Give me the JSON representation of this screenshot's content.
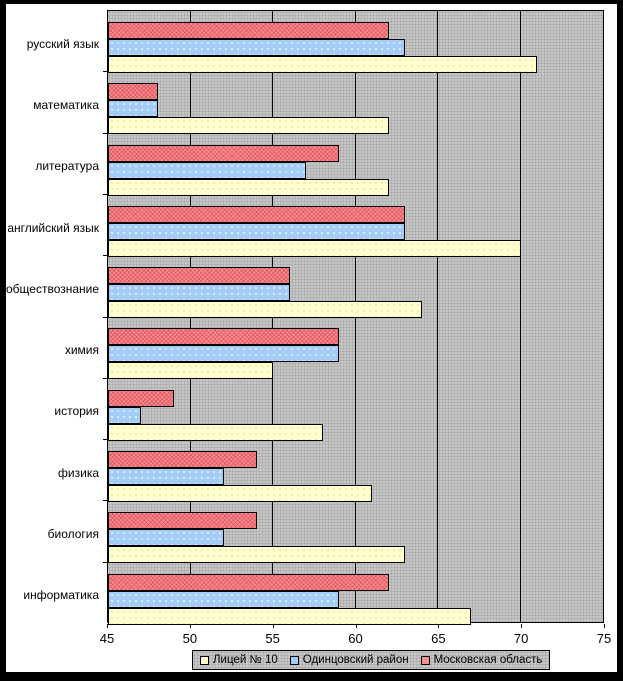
{
  "chart_data": {
    "type": "bar",
    "orientation": "horizontal",
    "title": "",
    "xlabel": "",
    "ylabel": "",
    "xlim": [
      45,
      75
    ],
    "xticks": [
      45,
      50,
      55,
      60,
      65,
      70,
      75
    ],
    "grid": "vertical-major",
    "legend_position": "bottom",
    "plot_background": "#C0C0C0",
    "gridline_color": "#000000",
    "categories": [
      "русский язык",
      "математика",
      "литература",
      "английский язык",
      "обществознание",
      "химия",
      "история",
      "физика",
      "биология",
      "информатика"
    ],
    "series": [
      {
        "name": "Лицей № 10",
        "color": "#FFFFCC",
        "values": [
          71,
          62,
          62,
          70,
          64,
          55,
          58,
          61,
          63,
          67
        ]
      },
      {
        "name": "Одинцовский район",
        "color": "#99CCFF",
        "values": [
          63,
          48,
          57,
          63,
          56,
          59,
          47,
          52,
          52,
          59
        ]
      },
      {
        "name": "Московская область",
        "color": "#F08080",
        "values": [
          62,
          48,
          59,
          63,
          56,
          59,
          49,
          54,
          54,
          62
        ]
      }
    ],
    "bar_draw_order_top_to_bottom": [
      "Московская область",
      "Одинцовский район",
      "Лицей № 10"
    ]
  }
}
